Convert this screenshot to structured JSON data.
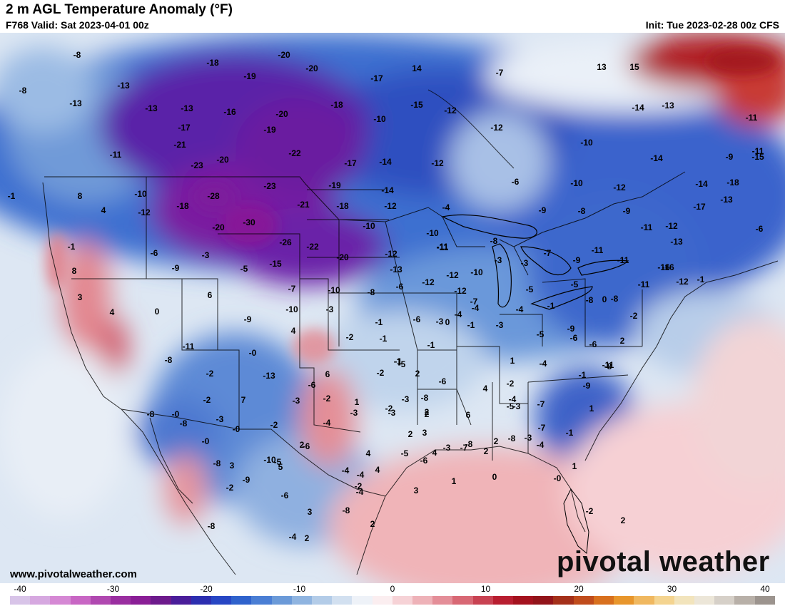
{
  "header": {
    "title": "2 m AGL Temperature Anomaly (°F)",
    "valid": "F768 Valid: Sat 2023-04-01 00z",
    "init": "Init: Tue 2023-02-28 00z CFS"
  },
  "footer": {
    "website": "www.pivotalweather.com",
    "brand": "pivotal weather"
  },
  "colorbar": {
    "min": -40,
    "max": 40,
    "ticks": [
      "-40",
      "-30",
      "-20",
      "-10",
      "0",
      "10",
      "20",
      "30",
      "40"
    ],
    "colors": [
      "#d8c4e8",
      "#d6a8e0",
      "#d588d4",
      "#c866c4",
      "#b048b0",
      "#9a2ea0",
      "#8a1e96",
      "#6d1a8c",
      "#4a1d9a",
      "#2c2eb0",
      "#2746c4",
      "#2f62cc",
      "#4a7ed4",
      "#6b9ad8",
      "#8fb4e0",
      "#b3cce8",
      "#d2e0f0",
      "#eef2f8",
      "#fbeef0",
      "#f6d2d6",
      "#eeb2b8",
      "#e48e98",
      "#d86874",
      "#c84252",
      "#b81e30",
      "#a4121e",
      "#92141a",
      "#a4301a",
      "#c04c1c",
      "#d8701e",
      "#e8962c",
      "#f0b860",
      "#f4d490",
      "#f2e4bc",
      "#ece6d8",
      "#d6d0c8",
      "#b8b0a8",
      "#9c948e"
    ]
  },
  "map_values": [
    {
      "v": "-8"
    },
    {
      "v": "-18"
    },
    {
      "v": "-20"
    },
    {
      "v": "-20"
    },
    {
      "v": "14"
    },
    {
      "v": "-7"
    },
    {
      "v": "13"
    },
    {
      "v": "15"
    },
    {
      "v": "-8"
    },
    {
      "v": "-13"
    },
    {
      "v": "-19"
    },
    {
      "v": "-17"
    },
    {
      "v": "-13"
    },
    {
      "v": "-13"
    },
    {
      "v": "-13"
    },
    {
      "v": "-13"
    },
    {
      "v": "-16"
    },
    {
      "v": "-20"
    },
    {
      "v": "-18"
    },
    {
      "v": "-15"
    },
    {
      "v": "-12"
    },
    {
      "v": "-10"
    },
    {
      "v": "-17"
    },
    {
      "v": "-19"
    },
    {
      "v": "-12"
    },
    {
      "v": "-14"
    },
    {
      "v": "-21"
    },
    {
      "v": "-11"
    },
    {
      "v": "-22"
    },
    {
      "v": "-11"
    },
    {
      "v": "-10"
    },
    {
      "v": "-11"
    },
    {
      "v": "-23"
    },
    {
      "v": "-20"
    },
    {
      "v": "-17"
    },
    {
      "v": "-14"
    },
    {
      "v": "-12"
    },
    {
      "v": "-14"
    },
    {
      "v": "-15"
    },
    {
      "v": "-9"
    },
    {
      "v": "-10"
    },
    {
      "v": "-28"
    },
    {
      "v": "-23"
    },
    {
      "v": "-19"
    },
    {
      "v": "-14"
    },
    {
      "v": "-6"
    },
    {
      "v": "-10"
    },
    {
      "v": "-12"
    },
    {
      "v": "-14"
    },
    {
      "v": "-18"
    },
    {
      "v": "8"
    },
    {
      "v": "4"
    },
    {
      "v": "-12"
    },
    {
      "v": "-18"
    },
    {
      "v": "-21"
    },
    {
      "v": "-18"
    },
    {
      "v": "-12"
    },
    {
      "v": "-4"
    },
    {
      "v": "-9"
    },
    {
      "v": "-8"
    },
    {
      "v": "-9"
    },
    {
      "v": "-17"
    },
    {
      "v": "-13"
    },
    {
      "v": "-20"
    },
    {
      "v": "-30"
    },
    {
      "v": "-10"
    },
    {
      "v": "-10"
    },
    {
      "v": "-11"
    },
    {
      "v": "-11"
    },
    {
      "v": "-12"
    },
    {
      "v": "-6"
    },
    {
      "v": "-1"
    },
    {
      "v": "-1"
    },
    {
      "v": "-6"
    },
    {
      "v": "-3"
    },
    {
      "v": "-26"
    },
    {
      "v": "-22"
    },
    {
      "v": "-20"
    },
    {
      "v": "-12"
    },
    {
      "v": "-11"
    },
    {
      "v": "-8"
    },
    {
      "v": "-7"
    },
    {
      "v": "-9"
    },
    {
      "v": "-11"
    },
    {
      "v": "-13"
    },
    {
      "v": "-11"
    },
    {
      "v": "-16"
    },
    {
      "v": "8"
    },
    {
      "v": "-9"
    },
    {
      "v": "-5"
    },
    {
      "v": "-15"
    },
    {
      "v": "-13"
    },
    {
      "v": "-12"
    },
    {
      "v": "-12"
    },
    {
      "v": "-10"
    },
    {
      "v": "-3"
    },
    {
      "v": "-3"
    },
    {
      "v": "-8"
    },
    {
      "v": "-7"
    },
    {
      "v": "-6"
    },
    {
      "v": "-10"
    },
    {
      "v": "-12"
    },
    {
      "v": "3"
    },
    {
      "v": "6"
    },
    {
      "v": "-7"
    },
    {
      "v": "-8"
    },
    {
      "v": "-5"
    },
    {
      "v": "-5"
    },
    {
      "v": "-8"
    },
    {
      "v": "-11"
    },
    {
      "v": "-12"
    },
    {
      "v": "-16"
    },
    {
      "v": "4"
    },
    {
      "v": "0"
    },
    {
      "v": "-9"
    },
    {
      "v": "-10"
    },
    {
      "v": "-3"
    },
    {
      "v": "-1"
    },
    {
      "v": "-4"
    },
    {
      "v": "-4"
    },
    {
      "v": "-3"
    },
    {
      "v": "-4"
    },
    {
      "v": "-6"
    },
    {
      "v": "0"
    },
    {
      "v": "-1"
    },
    {
      "v": "0"
    },
    {
      "v": "-2"
    },
    {
      "v": "-1"
    },
    {
      "v": "-1"
    },
    {
      "v": "-3"
    },
    {
      "v": "-5"
    },
    {
      "v": "-9"
    },
    {
      "v": "-6"
    },
    {
      "v": "2"
    },
    {
      "v": "4"
    },
    {
      "v": "-2"
    },
    {
      "v": "-1"
    },
    {
      "v": "-1"
    },
    {
      "v": "-5"
    },
    {
      "v": "-6"
    },
    {
      "v": "-11"
    },
    {
      "v": "-11"
    },
    {
      "v": "-0"
    },
    {
      "v": "-1"
    },
    {
      "v": "1"
    },
    {
      "v": "-4"
    },
    {
      "v": "-8"
    },
    {
      "v": "-8"
    },
    {
      "v": "-2"
    },
    {
      "v": "-13"
    },
    {
      "v": "6"
    },
    {
      "v": "-2"
    },
    {
      "v": "-1"
    },
    {
      "v": "2"
    },
    {
      "v": "-6"
    },
    {
      "v": "4"
    },
    {
      "v": "-2"
    },
    {
      "v": "-1"
    },
    {
      "v": "-6"
    },
    {
      "v": "-3"
    },
    {
      "v": "-8"
    },
    {
      "v": "-9"
    },
    {
      "v": "-2"
    },
    {
      "v": "7"
    },
    {
      "v": "-2"
    },
    {
      "v": "-4"
    },
    {
      "v": "-3"
    },
    {
      "v": "-2"
    },
    {
      "v": "1"
    },
    {
      "v": "-3"
    },
    {
      "v": "-7"
    },
    {
      "v": "1"
    },
    {
      "v": "-8"
    },
    {
      "v": "-0"
    },
    {
      "v": "-8"
    },
    {
      "v": "-3"
    },
    {
      "v": "6"
    },
    {
      "v": "2"
    },
    {
      "v": "-3"
    },
    {
      "v": "2"
    },
    {
      "v": "-7"
    },
    {
      "v": "-5"
    },
    {
      "v": "-7"
    },
    {
      "v": "-3"
    },
    {
      "v": "-4"
    },
    {
      "v": "-3"
    },
    {
      "v": "-2"
    },
    {
      "v": "2"
    },
    {
      "v": "-0"
    },
    {
      "v": "-0"
    },
    {
      "v": "2"
    },
    {
      "v": "3"
    },
    {
      "v": "4"
    },
    {
      "v": "-5"
    },
    {
      "v": "-6"
    },
    {
      "v": "-3"
    },
    {
      "v": "-8"
    },
    {
      "v": "2"
    },
    {
      "v": "-4"
    },
    {
      "v": "-1"
    },
    {
      "v": "2"
    },
    {
      "v": "-8"
    },
    {
      "v": "-9"
    },
    {
      "v": "-10"
    },
    {
      "v": "5"
    },
    {
      "v": "4"
    },
    {
      "v": "4"
    },
    {
      "v": "1"
    },
    {
      "v": "-6"
    },
    {
      "v": "-5"
    },
    {
      "v": "-4"
    },
    {
      "v": "-2"
    },
    {
      "v": "3"
    },
    {
      "v": "1"
    },
    {
      "v": "0"
    },
    {
      "v": "-8"
    },
    {
      "v": "3"
    },
    {
      "v": "-2"
    },
    {
      "v": "-4"
    },
    {
      "v": "-6"
    },
    {
      "v": "3"
    },
    {
      "v": "2"
    },
    {
      "v": "-4"
    },
    {
      "v": "-0"
    },
    {
      "v": "-2"
    },
    {
      "v": "-8"
    },
    {
      "v": "-8"
    },
    {
      "v": "2"
    },
    {
      "v": "-4"
    },
    {
      "v": "2"
    }
  ]
}
